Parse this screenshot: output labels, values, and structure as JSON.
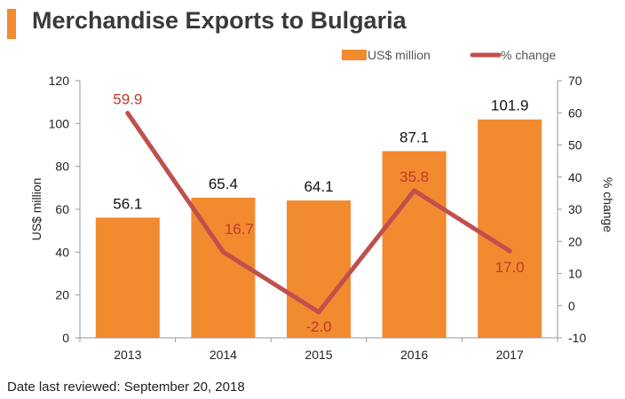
{
  "page": {
    "title": "Merchandise Exports to Bulgaria",
    "footnote": "Date last reviewed: September 20, 2018"
  },
  "colors": {
    "accent": "#f28a30",
    "bar": "#f28a30",
    "line": "#c0504d",
    "line_label": "#c0392b",
    "axis": "#999999"
  },
  "chart_data": {
    "type": "bar",
    "categories": [
      "2013",
      "2014",
      "2015",
      "2016",
      "2017"
    ],
    "series": [
      {
        "name": "US$ million",
        "type": "bar",
        "axis": "left",
        "values": [
          56.1,
          65.4,
          64.1,
          87.1,
          101.9
        ],
        "labels": [
          "56.1",
          "65.4",
          "64.1",
          "87.1",
          "101.9"
        ]
      },
      {
        "name": "% change",
        "type": "line",
        "axis": "right",
        "values": [
          59.9,
          16.7,
          -2.0,
          35.8,
          17.0
        ],
        "labels": [
          "59.9",
          "16.7",
          "-2.0",
          "35.8",
          "17.0"
        ]
      }
    ],
    "title": "Merchandise Exports to Bulgaria",
    "ylabel": "US$ million",
    "y2label": "% change",
    "ylim": [
      0,
      120
    ],
    "y2lim": [
      -10,
      70
    ],
    "yticks": [
      "0",
      "20",
      "40",
      "60",
      "80",
      "100",
      "120"
    ],
    "y2ticks": [
      "-10",
      "0",
      "10",
      "20",
      "30",
      "40",
      "50",
      "60",
      "70"
    ],
    "grid": false,
    "legend_position": "top-right"
  }
}
